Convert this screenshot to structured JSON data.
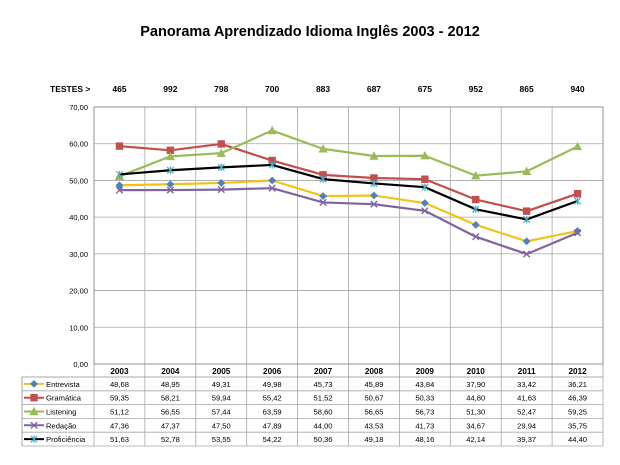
{
  "chart_data": {
    "type": "line",
    "title": "Panorama Aprendizado Idioma Inglês 2003 - 2012",
    "tests_label": "TESTES >",
    "tests": [
      "465",
      "992",
      "798",
      "700",
      "883",
      "687",
      "675",
      "952",
      "865",
      "940"
    ],
    "categories": [
      "2003",
      "2004",
      "2005",
      "2006",
      "2007",
      "2008",
      "2009",
      "2010",
      "2011",
      "2012"
    ],
    "ylim": [
      0,
      70
    ],
    "y_ticks": [
      "0,00",
      "10,00",
      "20,00",
      "30,00",
      "40,00",
      "50,00",
      "60,00",
      "70,00"
    ],
    "grid": true,
    "legend": "data-table-below",
    "series": [
      {
        "name": "Entrevista",
        "color": "#f2c218",
        "marker": "diamond",
        "marker_color": "#4f81bd",
        "values": [
          48.68,
          48.95,
          49.31,
          49.98,
          45.73,
          45.89,
          43.84,
          37.9,
          33.42,
          36.21
        ],
        "labels": [
          "48,68",
          "48,95",
          "49,31",
          "49,98",
          "45,73",
          "45,89",
          "43,84",
          "37,90",
          "33,42",
          "36,21"
        ]
      },
      {
        "name": "Gramática",
        "color": "#c0504d",
        "marker": "square",
        "marker_color": "#c0504d",
        "values": [
          59.35,
          58.21,
          59.94,
          55.42,
          51.52,
          50.67,
          50.33,
          44.8,
          41.63,
          46.39
        ],
        "labels": [
          "59,35",
          "58,21",
          "59,94",
          "55,42",
          "51,52",
          "50,67",
          "50,33",
          "44,80",
          "41,63",
          "46,39"
        ]
      },
      {
        "name": "Listening",
        "color": "#9bbb59",
        "marker": "triangle",
        "marker_color": "#9bbb59",
        "values": [
          51.12,
          56.55,
          57.44,
          63.59,
          58.6,
          56.65,
          56.73,
          51.3,
          52.47,
          59.25
        ],
        "labels": [
          "51,12",
          "56,55",
          "57,44",
          "63,59",
          "58,60",
          "56,65",
          "56,73",
          "51,30",
          "52,47",
          "59,25"
        ]
      },
      {
        "name": "Redação",
        "color": "#8064a2",
        "marker": "x",
        "marker_color": "#8064a2",
        "values": [
          47.36,
          47.37,
          47.5,
          47.89,
          44.0,
          43.53,
          41.73,
          34.67,
          29.94,
          35.75
        ],
        "labels": [
          "47,36",
          "47,37",
          "47,50",
          "47,89",
          "44,00",
          "43,53",
          "41,73",
          "34,67",
          "29,94",
          "35,75"
        ]
      },
      {
        "name": "Proficiência",
        "color": "#000000",
        "marker": "star",
        "marker_color": "#4bacc6",
        "values": [
          51.63,
          52.78,
          53.55,
          54.22,
          50.36,
          49.18,
          48.16,
          42.14,
          39.37,
          44.4
        ],
        "labels": [
          "51,63",
          "52,78",
          "53,55",
          "54,22",
          "50,36",
          "49,18",
          "48,16",
          "42,14",
          "39,37",
          "44,40"
        ]
      }
    ]
  }
}
